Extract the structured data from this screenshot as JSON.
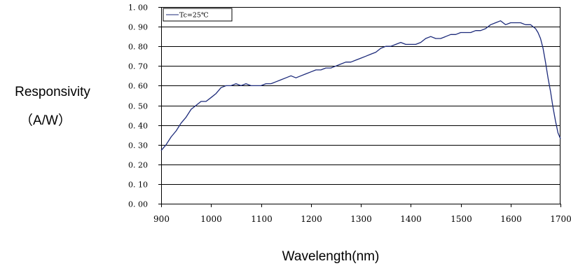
{
  "chart_data": {
    "type": "line",
    "xlabel": "Wavelength(nm)",
    "ylabel_line1": "Responsivity",
    "ylabel_line2": "（A/W）",
    "xlim": [
      900,
      1700
    ],
    "ylim": [
      0,
      1.0
    ],
    "x_ticks": [
      900,
      1000,
      1100,
      1200,
      1300,
      1400,
      1500,
      1600,
      1700
    ],
    "x_tick_labels": [
      "900",
      "1000",
      "1100",
      "1200",
      "1300",
      "1400",
      "1500",
      "1600",
      "1700"
    ],
    "y_ticks": [
      0,
      0.1,
      0.2,
      0.3,
      0.4,
      0.5,
      0.6,
      0.7,
      0.8,
      0.9,
      1.0
    ],
    "y_tick_labels": [
      "0. 00",
      "0. 10",
      "0. 20",
      "0. 30",
      "0. 40",
      "0. 50",
      "0. 60",
      "0. 70",
      "0. 80",
      "0. 90",
      "1. 00"
    ],
    "grid": "horizontal",
    "legend_position": "top-left",
    "line_color": "#1c2a7a",
    "series": [
      {
        "name": "Tc=25℃",
        "x": [
          900,
          910,
          920,
          930,
          940,
          950,
          960,
          970,
          980,
          990,
          1000,
          1010,
          1020,
          1030,
          1040,
          1050,
          1060,
          1070,
          1080,
          1090,
          1100,
          1110,
          1120,
          1130,
          1140,
          1150,
          1160,
          1170,
          1180,
          1190,
          1200,
          1210,
          1220,
          1230,
          1240,
          1250,
          1260,
          1270,
          1280,
          1290,
          1300,
          1310,
          1320,
          1330,
          1340,
          1350,
          1360,
          1370,
          1380,
          1390,
          1400,
          1410,
          1420,
          1430,
          1440,
          1450,
          1460,
          1470,
          1480,
          1490,
          1500,
          1510,
          1520,
          1530,
          1540,
          1550,
          1560,
          1570,
          1580,
          1590,
          1600,
          1610,
          1620,
          1630,
          1640,
          1645,
          1650,
          1655,
          1660,
          1665,
          1670,
          1675,
          1680,
          1685,
          1690,
          1695,
          1700
        ],
        "values": [
          0.27,
          0.3,
          0.34,
          0.37,
          0.41,
          0.44,
          0.48,
          0.5,
          0.52,
          0.52,
          0.54,
          0.56,
          0.59,
          0.6,
          0.6,
          0.61,
          0.6,
          0.61,
          0.6,
          0.6,
          0.6,
          0.61,
          0.61,
          0.62,
          0.63,
          0.64,
          0.65,
          0.64,
          0.65,
          0.66,
          0.67,
          0.68,
          0.68,
          0.69,
          0.69,
          0.7,
          0.71,
          0.72,
          0.72,
          0.73,
          0.74,
          0.75,
          0.76,
          0.77,
          0.79,
          0.8,
          0.8,
          0.81,
          0.82,
          0.81,
          0.81,
          0.81,
          0.82,
          0.84,
          0.85,
          0.84,
          0.84,
          0.85,
          0.86,
          0.86,
          0.87,
          0.87,
          0.87,
          0.88,
          0.88,
          0.89,
          0.91,
          0.92,
          0.93,
          0.91,
          0.92,
          0.92,
          0.92,
          0.91,
          0.91,
          0.9,
          0.89,
          0.87,
          0.84,
          0.79,
          0.72,
          0.64,
          0.57,
          0.49,
          0.42,
          0.36,
          0.33
        ]
      }
    ]
  }
}
